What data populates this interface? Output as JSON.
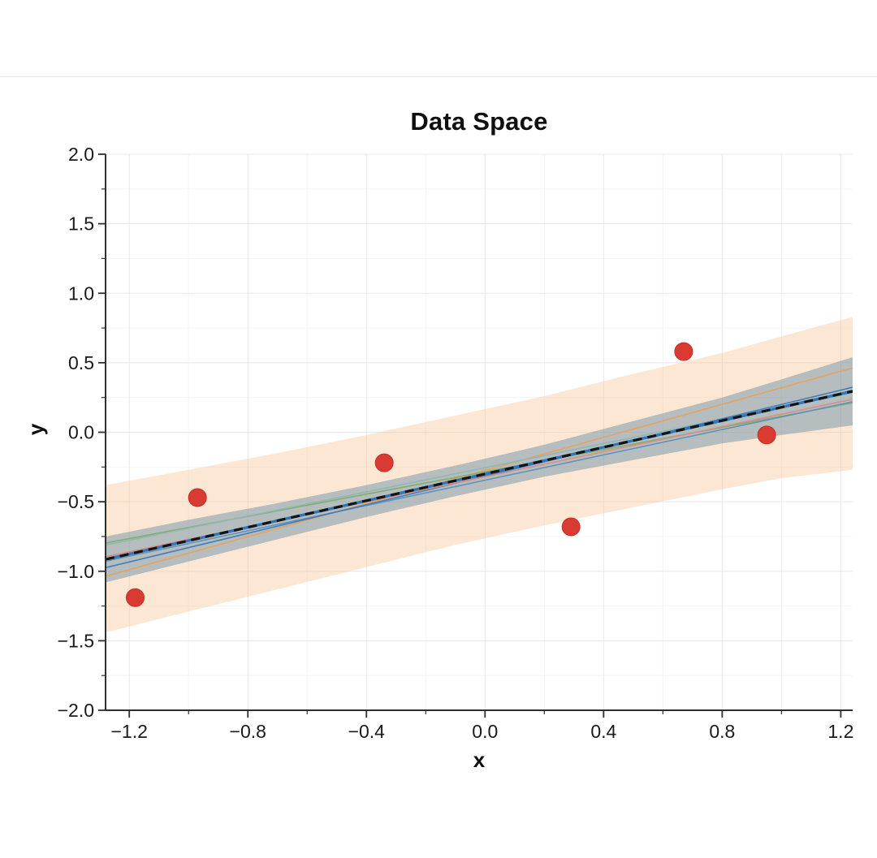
{
  "page": {
    "background": "#ffffff",
    "divider_color": "#e9e9e9"
  },
  "chart_data": {
    "type": "scatter",
    "title": "Data Space",
    "xlabel": "x",
    "ylabel": "y",
    "xlim": [
      -1.28,
      1.24
    ],
    "ylim": [
      -2.0,
      2.0
    ],
    "grid": true,
    "legend_position": "none",
    "x_ticks": [
      -1.2,
      -0.8,
      -0.4,
      0.0,
      0.4,
      0.8,
      1.2
    ],
    "x_tick_labels": [
      "−1.2",
      "−0.8",
      "−0.4",
      "0.0",
      "0.4",
      "0.8",
      "1.2"
    ],
    "x_minor_ticks": [
      -1.0,
      -0.6,
      -0.2,
      0.2,
      0.6,
      1.0
    ],
    "y_ticks": [
      -2.0,
      -1.5,
      -1.0,
      -0.5,
      0.0,
      0.5,
      1.0,
      1.5,
      2.0
    ],
    "y_tick_labels": [
      "−2.0",
      "−1.5",
      "−1.0",
      "−0.5",
      "0.0",
      "0.5",
      "1.0",
      "1.5",
      "2.0"
    ],
    "y_minor_ticks": [
      -1.75,
      -1.25,
      -0.75,
      -0.25,
      0.25,
      0.75,
      1.25,
      1.75
    ],
    "style": {
      "major_grid": "#e8e8e8",
      "minor_grid": "#f4f4f4",
      "spine": "#2f2f2f",
      "tick_color": "#2f2f2f",
      "label_color": "#1a1a1a"
    },
    "bands": [
      {
        "name": "outer-uncertainty-band",
        "color": "#f7c398",
        "opacity": 0.42,
        "x": [
          -1.28,
          -1.0,
          -0.7,
          -0.4,
          -0.1,
          0.2,
          0.5,
          0.8,
          1.0,
          1.24
        ],
        "upper": [
          -0.38,
          -0.27,
          -0.15,
          -0.02,
          0.12,
          0.26,
          0.42,
          0.57,
          0.69,
          0.83
        ],
        "lower": [
          -1.44,
          -1.29,
          -1.13,
          -0.97,
          -0.81,
          -0.67,
          -0.54,
          -0.41,
          -0.33,
          -0.27
        ]
      },
      {
        "name": "inner-uncertainty-band",
        "color": "#6f93a8",
        "opacity": 0.5,
        "x": [
          -1.28,
          -1.0,
          -0.7,
          -0.4,
          -0.1,
          0.2,
          0.5,
          0.8,
          1.0,
          1.24
        ],
        "upper": [
          -0.75,
          -0.63,
          -0.51,
          -0.38,
          -0.24,
          -0.09,
          0.08,
          0.25,
          0.38,
          0.54
        ],
        "lower": [
          -1.08,
          -0.93,
          -0.77,
          -0.61,
          -0.46,
          -0.32,
          -0.2,
          -0.08,
          -0.02,
          0.05
        ]
      }
    ],
    "sample_lines": [
      {
        "color": "#e9a05c",
        "slope": 0.595,
        "intercept": -0.275
      },
      {
        "color": "#7fae66",
        "slope": 0.4,
        "intercept": -0.285
      },
      {
        "color": "#8fb6b4",
        "slope": 0.435,
        "intercept": -0.255
      },
      {
        "color": "#5e8fc0",
        "slope": 0.455,
        "intercept": -0.345
      },
      {
        "color": "#3f7ab8",
        "slope": 0.515,
        "intercept": -0.315
      },
      {
        "color": "#d98b82",
        "slope": 0.45,
        "intercept": -0.32
      }
    ],
    "mean_line": {
      "slope": 0.48,
      "intercept": -0.3,
      "solid_color": "#2e77b8",
      "dashed_color": "#141414"
    },
    "scatter": {
      "color": "#d93a31",
      "edge_color": "#c32f27",
      "radius": 11,
      "points": [
        [
          -1.18,
          -1.19
        ],
        [
          -0.97,
          -0.47
        ],
        [
          -0.34,
          -0.22
        ],
        [
          0.29,
          -0.68
        ],
        [
          0.67,
          0.58
        ],
        [
          0.95,
          -0.02
        ]
      ]
    }
  }
}
